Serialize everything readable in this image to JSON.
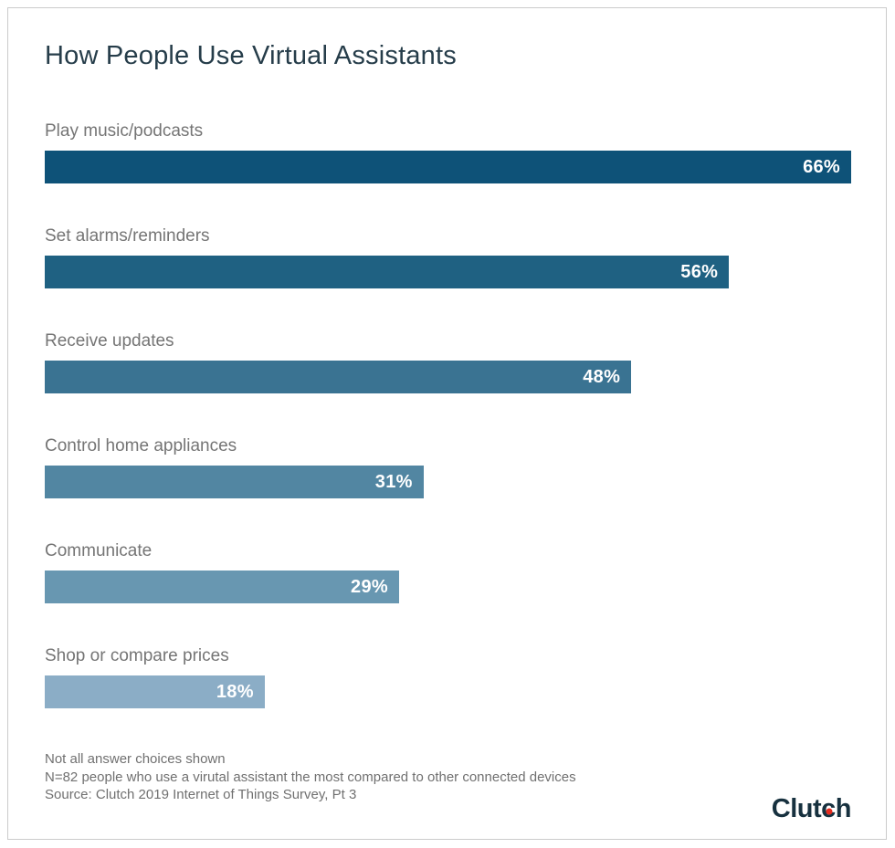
{
  "chart_data": {
    "type": "bar",
    "orientation": "horizontal",
    "title": "How People Use Virtual Assistants",
    "categories": [
      "Play music/podcasts",
      "Set alarms/reminders",
      "Receive updates",
      "Control home appliances",
      "Communicate",
      "Shop or compare prices"
    ],
    "values": [
      66,
      56,
      48,
      31,
      29,
      18
    ],
    "value_labels": [
      "66%",
      "56%",
      "48%",
      "31%",
      "29%",
      "18%"
    ],
    "bar_colors": [
      "#0e5278",
      "#1f6182",
      "#3a7392",
      "#5286a2",
      "#6897b1",
      "#8badc6"
    ],
    "xlim": [
      0,
      66
    ],
    "xlabel": "",
    "ylabel": "",
    "grid": false,
    "legend": false,
    "annotations": [
      "Not all answer choices shown",
      "N=82 people who use a virutal assistant the most compared to other connected devices",
      "Source: Clutch 2019 Internet of Things Survey, Pt 3"
    ]
  },
  "footer": {
    "note_line1": "Not all answer choices shown",
    "note_line2": "N=82 people who use a virutal assistant the most compared to other connected devices",
    "note_line3": "Source: Clutch 2019 Internet of Things Survey, Pt 3",
    "logo": {
      "text": "Clutch",
      "prefix": "Clut",
      "dotted_letter": "c",
      "suffix": "h",
      "dot_color": "#e62b1e",
      "text_color": "#17313f"
    }
  },
  "colors": {
    "title": "#263d4a",
    "category_label": "#757575",
    "footer_text": "#707070",
    "frame_border": "#cbcbcb",
    "bar_value_text": "#ffffff"
  }
}
